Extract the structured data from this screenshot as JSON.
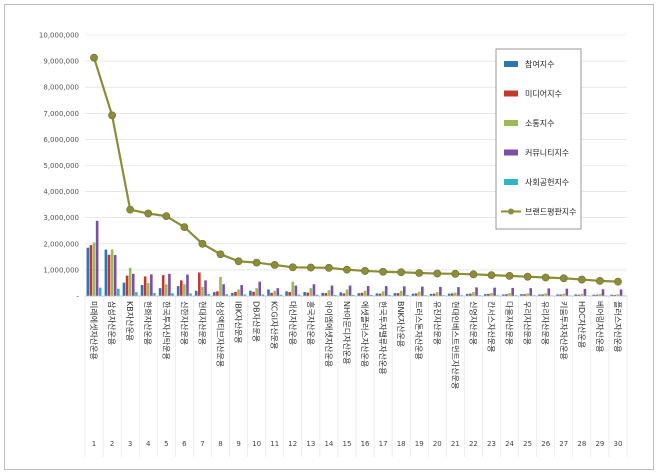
{
  "chart_data": {
    "type": "bar",
    "title": "",
    "xlabel": "",
    "ylabel": "",
    "ylim": [
      0,
      10000000
    ],
    "yticks": [
      "-",
      "1,000,000",
      "2,000,000",
      "3,000,000",
      "4,000,000",
      "5,000,000",
      "6,000,000",
      "7,000,000",
      "8,000,000",
      "9,000,000",
      "10,000,000"
    ],
    "grid": true,
    "legend_position": "right",
    "numbers": [
      "1",
      "2",
      "3",
      "4",
      "5",
      "6",
      "7",
      "8",
      "9",
      "10",
      "11",
      "12",
      "13",
      "14",
      "15",
      "16",
      "17",
      "18",
      "19",
      "20",
      "21",
      "22",
      "23",
      "24",
      "25",
      "26",
      "27",
      "28",
      "29",
      "30"
    ],
    "categories": [
      "미래에셋자산운용",
      "삼성자산운용",
      "KB자산운용",
      "한화자산운용",
      "한국투자신탁운용",
      "신한자산운용",
      "현대자산운용",
      "삼성액티브자산운용",
      "IBK자산운용",
      "DB자산운용",
      "KCGI자산운용",
      "대신자산운용",
      "흥국자산운용",
      "아이엠에셋자산운용",
      "NH아문디자산운용",
      "에셋플러스자산운용",
      "한국투자밸류자산운용",
      "BNK자산운용",
      "트러스톤자산운용",
      "유진자산운용",
      "현대인베스트먼트자산운용",
      "신영자산운용",
      "칸서스자산운용",
      "다올자산운용",
      "우리자산운용",
      "유리자산운용",
      "키움투자자산운용",
      "HDC자산운용",
      "베어링자산운용",
      "플러스자산운용"
    ],
    "series": [
      {
        "name": "참여지수",
        "type": "bar",
        "color": "#2e75b6",
        "values": [
          1850000,
          1780000,
          510000,
          420000,
          300000,
          380000,
          200000,
          150000,
          120000,
          200000,
          250000,
          180000,
          150000,
          120000,
          140000,
          110000,
          100000,
          110000,
          90000,
          80000,
          90000,
          80000,
          70000,
          60000,
          70000,
          60000,
          60000,
          60000,
          50000,
          50000
        ]
      },
      {
        "name": "미디어지수",
        "type": "bar",
        "color": "#c0392b",
        "values": [
          1950000,
          1580000,
          780000,
          750000,
          800000,
          600000,
          900000,
          180000,
          160000,
          160000,
          120000,
          150000,
          130000,
          110000,
          100000,
          120000,
          90000,
          110000,
          100000,
          90000,
          100000,
          90000,
          80000,
          70000,
          70000,
          60000,
          60000,
          50000,
          50000,
          40000
        ]
      },
      {
        "name": "소통지수",
        "type": "bar",
        "color": "#9bbb59",
        "values": [
          2050000,
          1780000,
          1080000,
          500000,
          450000,
          450000,
          350000,
          730000,
          250000,
          300000,
          200000,
          550000,
          300000,
          220000,
          250000,
          200000,
          180000,
          200000,
          170000,
          150000,
          130000,
          150000,
          120000,
          110000,
          100000,
          100000,
          90000,
          80000,
          80000,
          70000
        ]
      },
      {
        "name": "커뮤니티지수",
        "type": "bar",
        "color": "#7b4fa6",
        "values": [
          2880000,
          1570000,
          850000,
          830000,
          850000,
          820000,
          600000,
          450000,
          420000,
          550000,
          300000,
          400000,
          450000,
          400000,
          400000,
          380000,
          380000,
          370000,
          360000,
          350000,
          340000,
          330000,
          320000,
          310000,
          300000,
          290000,
          280000,
          270000,
          260000,
          250000
        ]
      },
      {
        "name": "사회공헌지수",
        "type": "bar",
        "color": "#31b4c8",
        "values": [
          320000,
          280000,
          150000,
          120000,
          110000,
          100000,
          80000,
          70000,
          60000,
          60000,
          50000,
          50000,
          50000,
          40000,
          40000,
          40000,
          40000,
          40000,
          30000,
          30000,
          30000,
          30000,
          30000,
          30000,
          30000,
          20000,
          20000,
          20000,
          20000,
          20000
        ]
      },
      {
        "name": "브랜드평판지수",
        "type": "line",
        "color": "#8c8c3a",
        "values": [
          9130000,
          6920000,
          3310000,
          3160000,
          3060000,
          2640000,
          2000000,
          1600000,
          1330000,
          1280000,
          1190000,
          1100000,
          1090000,
          1080000,
          1010000,
          960000,
          930000,
          910000,
          880000,
          860000,
          850000,
          830000,
          800000,
          770000,
          740000,
          710000,
          680000,
          630000,
          580000,
          550000
        ]
      }
    ]
  }
}
